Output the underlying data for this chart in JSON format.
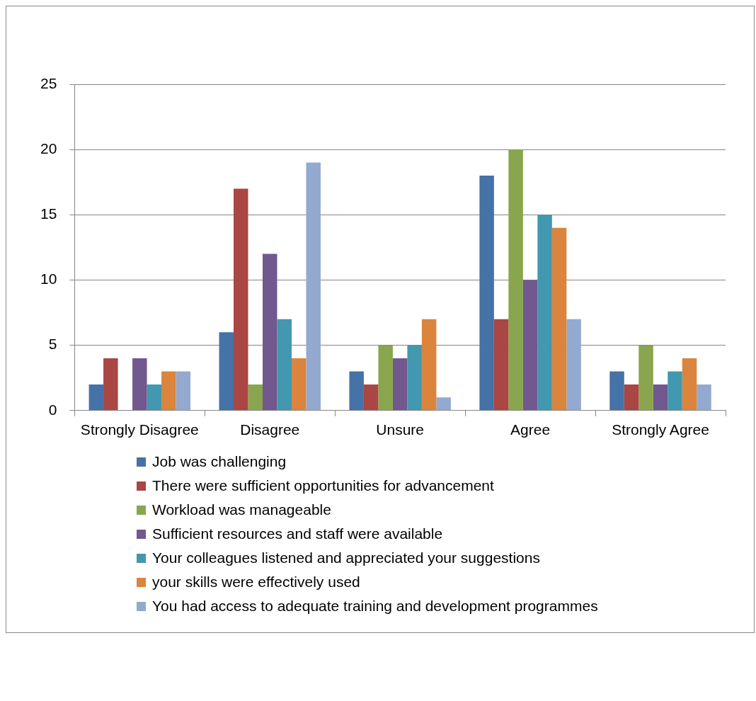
{
  "chart_data": {
    "type": "bar",
    "categories": [
      "Strongly Disagree",
      "Disagree",
      "Unsure",
      "Agree",
      "Strongly Agree"
    ],
    "series": [
      {
        "name": "Job was challenging",
        "color": "#4572a7",
        "values": [
          2,
          6,
          3,
          18,
          3
        ]
      },
      {
        "name": "There were sufficient opportunities for advancement",
        "color": "#aa4643",
        "values": [
          4,
          17,
          2,
          7,
          2
        ]
      },
      {
        "name": "Workload was manageable",
        "color": "#89a54e",
        "values": [
          0,
          2,
          5,
          20,
          5
        ]
      },
      {
        "name": "Sufficient resources and staff were available",
        "color": "#71588f",
        "values": [
          4,
          12,
          4,
          10,
          2
        ]
      },
      {
        "name": "Your colleagues listened and appreciated your suggestions",
        "color": "#4198af",
        "values": [
          2,
          7,
          5,
          15,
          3
        ]
      },
      {
        "name": "your skills were effectively used",
        "color": "#db843d",
        "values": [
          3,
          4,
          7,
          14,
          4
        ]
      },
      {
        "name": "You had access to adequate training and development programmes",
        "color": "#93a9cf",
        "values": [
          3,
          19,
          1,
          7,
          2
        ]
      }
    ],
    "ylim": [
      0,
      25
    ],
    "yticks": [
      0,
      5,
      10,
      15,
      20,
      25
    ],
    "grid": "y",
    "legend": "bottom"
  }
}
